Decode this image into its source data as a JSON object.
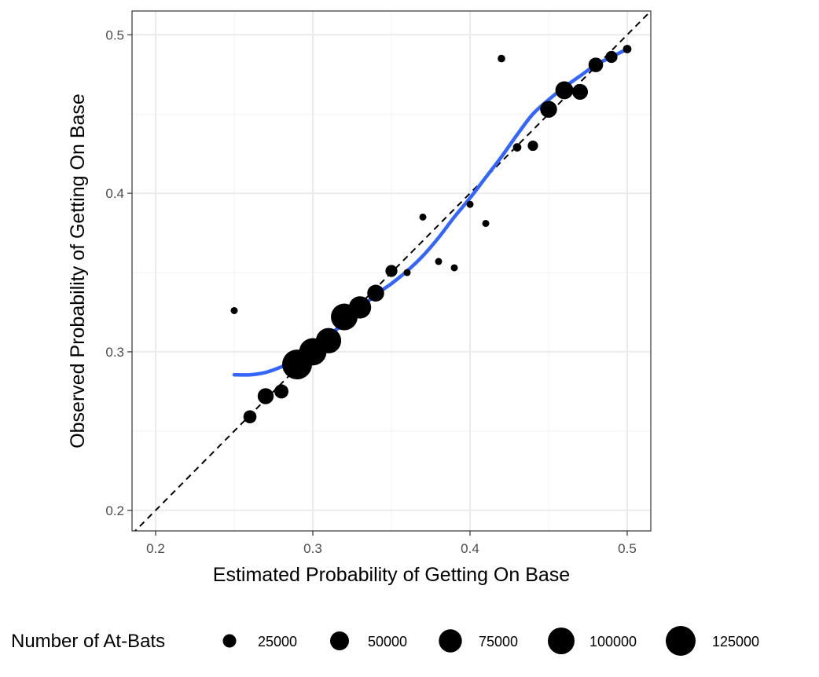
{
  "chart_data": {
    "type": "scatter",
    "xlabel": "Estimated Probability of Getting On Base",
    "ylabel": "Observed Probability of Getting On Base",
    "xlim": [
      0.185,
      0.515
    ],
    "ylim": [
      0.187,
      0.515
    ],
    "x_ticks": [
      "0.2",
      "0.3",
      "0.4",
      "0.5"
    ],
    "y_ticks": [
      "0.2",
      "0.3",
      "0.4",
      "0.5"
    ],
    "grid": true,
    "reference_line": {
      "type": "identity",
      "style": "dashed",
      "color": "#000000"
    },
    "smooth_color": "#3366ff",
    "point_color": "#000000",
    "legend": {
      "title": "Number of At-Bats",
      "position": "bottom",
      "entries": [
        {
          "label": "25000",
          "value": 25000
        },
        {
          "label": "50000",
          "value": 50000
        },
        {
          "label": "75000",
          "value": 75000
        },
        {
          "label": "100000",
          "value": 100000
        },
        {
          "label": "125000",
          "value": 125000
        }
      ]
    },
    "points": [
      {
        "x": 0.25,
        "y": 0.326,
        "n": 2000
      },
      {
        "x": 0.26,
        "y": 0.259,
        "n": 24000
      },
      {
        "x": 0.27,
        "y": 0.272,
        "n": 36000
      },
      {
        "x": 0.28,
        "y": 0.275,
        "n": 28000
      },
      {
        "x": 0.29,
        "y": 0.292,
        "n": 125000
      },
      {
        "x": 0.3,
        "y": 0.3,
        "n": 105000
      },
      {
        "x": 0.31,
        "y": 0.307,
        "n": 90000
      },
      {
        "x": 0.32,
        "y": 0.322,
        "n": 100000
      },
      {
        "x": 0.33,
        "y": 0.328,
        "n": 70000
      },
      {
        "x": 0.34,
        "y": 0.337,
        "n": 40000
      },
      {
        "x": 0.35,
        "y": 0.351,
        "n": 20000
      },
      {
        "x": 0.36,
        "y": 0.35,
        "n": 6000
      },
      {
        "x": 0.37,
        "y": 0.385,
        "n": 5000
      },
      {
        "x": 0.38,
        "y": 0.357,
        "n": 4000
      },
      {
        "x": 0.39,
        "y": 0.353,
        "n": 6000
      },
      {
        "x": 0.4,
        "y": 0.393,
        "n": 5000
      },
      {
        "x": 0.41,
        "y": 0.381,
        "n": 5000
      },
      {
        "x": 0.42,
        "y": 0.485,
        "n": 8000
      },
      {
        "x": 0.43,
        "y": 0.429,
        "n": 10000
      },
      {
        "x": 0.44,
        "y": 0.43,
        "n": 15000
      },
      {
        "x": 0.45,
        "y": 0.453,
        "n": 40000
      },
      {
        "x": 0.46,
        "y": 0.465,
        "n": 45000
      },
      {
        "x": 0.47,
        "y": 0.464,
        "n": 35000
      },
      {
        "x": 0.48,
        "y": 0.481,
        "n": 30000
      },
      {
        "x": 0.49,
        "y": 0.486,
        "n": 20000
      },
      {
        "x": 0.5,
        "y": 0.491,
        "n": 10000
      }
    ],
    "smooth": [
      {
        "x": 0.25,
        "y": 0.2855
      },
      {
        "x": 0.26,
        "y": 0.2855
      },
      {
        "x": 0.27,
        "y": 0.287
      },
      {
        "x": 0.28,
        "y": 0.2905
      },
      {
        "x": 0.29,
        "y": 0.2955
      },
      {
        "x": 0.3,
        "y": 0.302
      },
      {
        "x": 0.31,
        "y": 0.31
      },
      {
        "x": 0.32,
        "y": 0.318
      },
      {
        "x": 0.33,
        "y": 0.327
      },
      {
        "x": 0.34,
        "y": 0.336
      },
      {
        "x": 0.35,
        "y": 0.343
      },
      {
        "x": 0.36,
        "y": 0.351
      },
      {
        "x": 0.37,
        "y": 0.3605
      },
      {
        "x": 0.38,
        "y": 0.372
      },
      {
        "x": 0.39,
        "y": 0.385
      },
      {
        "x": 0.4,
        "y": 0.397
      },
      {
        "x": 0.41,
        "y": 0.41
      },
      {
        "x": 0.42,
        "y": 0.423
      },
      {
        "x": 0.43,
        "y": 0.437
      },
      {
        "x": 0.44,
        "y": 0.45
      },
      {
        "x": 0.45,
        "y": 0.459
      },
      {
        "x": 0.46,
        "y": 0.467
      },
      {
        "x": 0.47,
        "y": 0.474
      },
      {
        "x": 0.48,
        "y": 0.481
      },
      {
        "x": 0.49,
        "y": 0.486
      },
      {
        "x": 0.5,
        "y": 0.491
      }
    ]
  }
}
